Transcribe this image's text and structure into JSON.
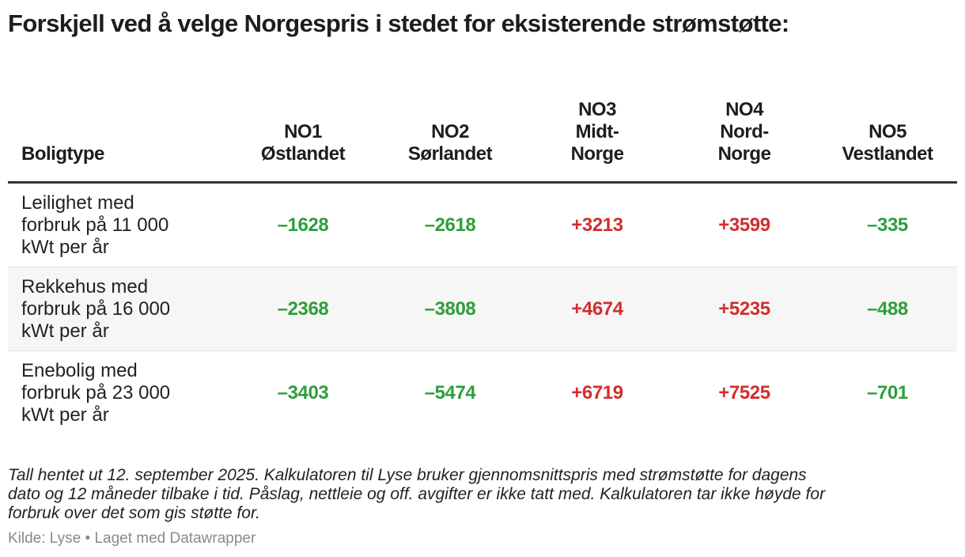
{
  "title": "Forskjell ved å velge Norgespris i stedet for eksisterende strømstøtte:",
  "colors": {
    "negative": "#2e9e3a",
    "positive": "#d12e2e"
  },
  "chart_data": {
    "type": "table",
    "title": "Forskjell ved å velge Norgespris i stedet for eksisterende strømstøtte:",
    "row_header": "Boligtype",
    "columns": [
      {
        "lines": [
          "NO1",
          "Østlandet"
        ]
      },
      {
        "lines": [
          "NO2",
          "Sørlandet"
        ]
      },
      {
        "lines": [
          "NO3",
          "Midt-",
          "Norge"
        ]
      },
      {
        "lines": [
          "NO4",
          "Nord-",
          "Norge"
        ]
      },
      {
        "lines": [
          "NO5",
          "Vestlandet"
        ]
      }
    ],
    "rows": [
      {
        "label_lines": [
          "Leilighet med",
          "forbruk på 11 000",
          "kWt per år"
        ],
        "values": [
          -1628,
          -2618,
          3213,
          3599,
          -335
        ],
        "display": [
          "–1628",
          "–2618",
          "+3213",
          "+3599",
          "–335"
        ]
      },
      {
        "label_lines": [
          "Rekkehus med",
          "forbruk på 16 000",
          "kWt per år"
        ],
        "values": [
          -2368,
          -3808,
          4674,
          5235,
          -488
        ],
        "display": [
          "–2368",
          "–3808",
          "+4674",
          "+5235",
          "–488"
        ]
      },
      {
        "label_lines": [
          "Enebolig med",
          "forbruk på 23 000",
          "kWt per år"
        ],
        "values": [
          -3403,
          -5474,
          6719,
          7525,
          -701
        ],
        "display": [
          "–3403",
          "–5474",
          "+6719",
          "+7525",
          "–701"
        ]
      }
    ]
  },
  "notes_lines": [
    "Tall hentet ut 12. september 2025. Kalkulatoren til Lyse bruker gjennomsnittspris med strømstøtte for dagens",
    "dato og 12 måneder tilbake i tid. Påslag, nettleie og off. avgifter er ikke tatt med. Kalkulatoren tar ikke høyde for",
    "forbruk over det som gis støtte for."
  ],
  "source": "Kilde: Lyse • Laget med Datawrapper"
}
